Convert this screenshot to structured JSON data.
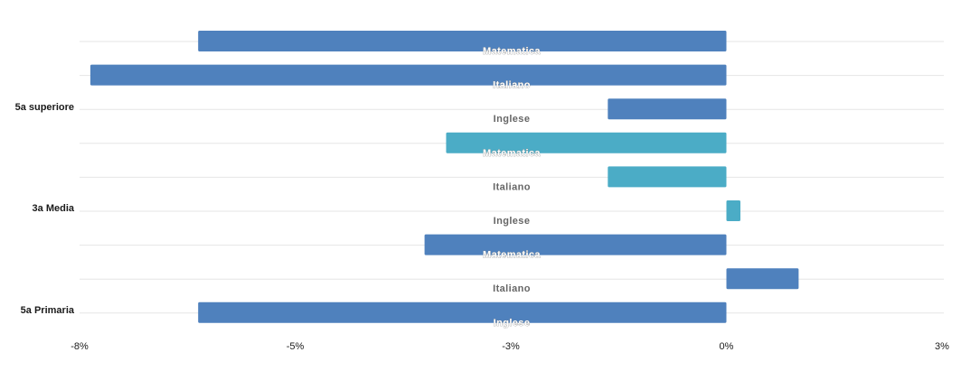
{
  "chart_data": {
    "type": "bar",
    "orientation": "horizontal",
    "groups": [
      {
        "name": "5a superiore",
        "color": "#4f81bd",
        "bars": [
          {
            "label": "Matematica",
            "value": -4.9
          },
          {
            "label": "Italiano",
            "value": -5.9
          },
          {
            "label": "Inglese",
            "value": -1.1
          }
        ]
      },
      {
        "name": "3a Media",
        "color": "#4bacc6",
        "bars": [
          {
            "label": "Matematica",
            "value": -2.6
          },
          {
            "label": "Italiano",
            "value": -1.1
          },
          {
            "label": "Inglese",
            "value": 0.13
          }
        ]
      },
      {
        "name": "5a Primaria",
        "color": "#4f81bd",
        "bars": [
          {
            "label": "Matematica",
            "value": -2.8
          },
          {
            "label": "Italiano",
            "value": 0.67
          },
          {
            "label": "Inglese",
            "value": -4.9
          }
        ]
      }
    ],
    "xlim": [
      -6,
      2
    ],
    "xticks": [
      -6,
      -4,
      -2,
      0,
      2
    ],
    "xtick_labels": [
      "-8%",
      "-5%",
      "-3%",
      "0%",
      "3%"
    ],
    "title": "",
    "xlabel": "",
    "ylabel": "",
    "grid": true,
    "legend": "none",
    "label_colors": {
      "on_bar": "#ffffff",
      "off_bar": "#666666",
      "halo": "#888888"
    }
  }
}
